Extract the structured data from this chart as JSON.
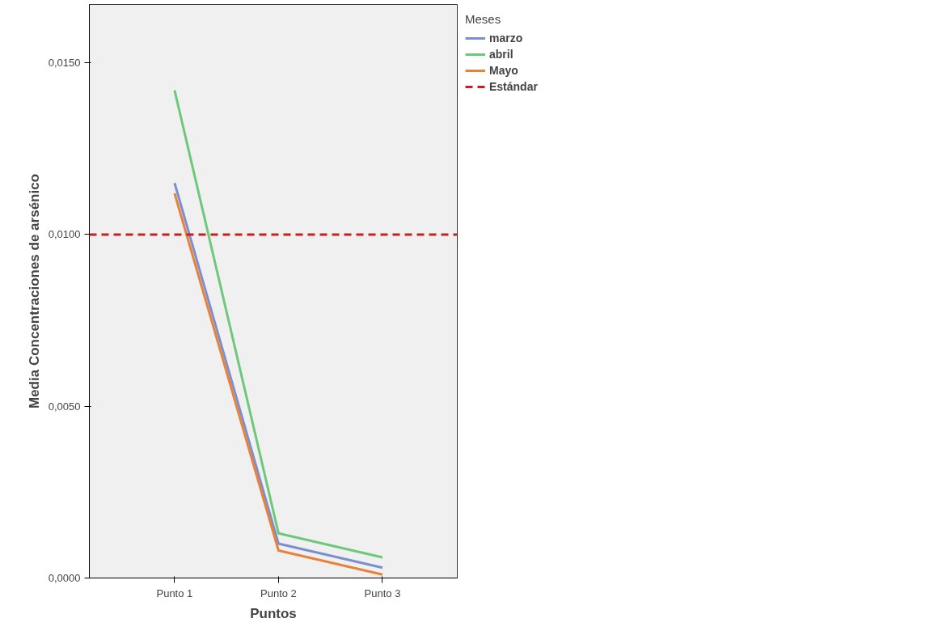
{
  "chart_data": {
    "type": "line",
    "xlabel": "Puntos",
    "ylabel": "Media Concentraciones de arsénico",
    "legend_title": "Meses",
    "categories": [
      "Punto 1",
      "Punto 2",
      "Punto 3"
    ],
    "series": [
      {
        "name": "marzo",
        "color": "#7b8fcf",
        "values": [
          0.0115,
          0.001,
          0.0003
        ]
      },
      {
        "name": "abril",
        "color": "#6dc97a",
        "values": [
          0.0142,
          0.0013,
          0.0006
        ]
      },
      {
        "name": "Mayo",
        "color": "#e8823a",
        "values": [
          0.0112,
          0.0008,
          0.0001
        ]
      }
    ],
    "ref_lines": [
      {
        "axis": "y",
        "value": 0.01,
        "label": "Estándar",
        "color": "#c8201e",
        "line_style": "dashed"
      }
    ],
    "ylim": [
      0,
      0.0167
    ],
    "yticks": [
      {
        "value": 0,
        "label": "0,0000"
      },
      {
        "value": 0.005,
        "label": "0,0050"
      },
      {
        "value": 0.01,
        "label": "0,0100"
      },
      {
        "value": 0.015,
        "label": "0,0150"
      }
    ],
    "grid": false,
    "legend": "top right",
    "line_style": "solid",
    "marker": "none"
  }
}
